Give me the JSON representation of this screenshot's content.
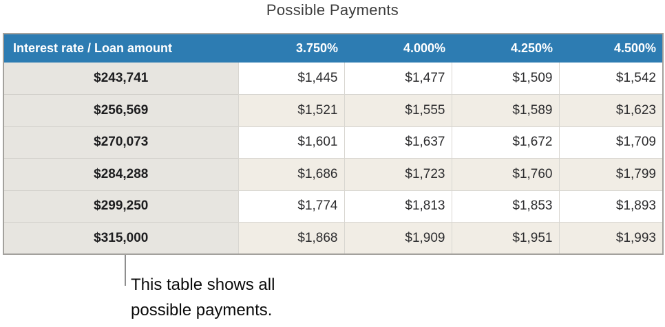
{
  "title": "Possible Payments",
  "table": {
    "header": [
      "Interest rate / Loan amount",
      "3.750%",
      "4.000%",
      "4.250%",
      "4.500%"
    ],
    "rows": [
      {
        "loan": "$243,741",
        "payments": [
          "$1,445",
          "$1,477",
          "$1,509",
          "$1,542"
        ]
      },
      {
        "loan": "$256,569",
        "payments": [
          "$1,521",
          "$1,555",
          "$1,589",
          "$1,623"
        ]
      },
      {
        "loan": "$270,073",
        "payments": [
          "$1,601",
          "$1,637",
          "$1,672",
          "$1,709"
        ]
      },
      {
        "loan": "$284,288",
        "payments": [
          "$1,686",
          "$1,723",
          "$1,760",
          "$1,799"
        ]
      },
      {
        "loan": "$299,250",
        "payments": [
          "$1,774",
          "$1,813",
          "$1,853",
          "$1,893"
        ]
      },
      {
        "loan": "$315,000",
        "payments": [
          "$1,868",
          "$1,909",
          "$1,951",
          "$1,993"
        ]
      }
    ]
  },
  "callout": {
    "line1": "This table shows all",
    "line2": "possible payments."
  },
  "colors": {
    "header_background": "#2d7cb2",
    "header_text": "#ffffff",
    "loan_column_background": "#e7e5e0",
    "row_stripe_background": "#f1ede5",
    "row_plain_background": "#ffffff",
    "table_border": "#a3a19d",
    "callout_line": "#8e8e8e"
  }
}
